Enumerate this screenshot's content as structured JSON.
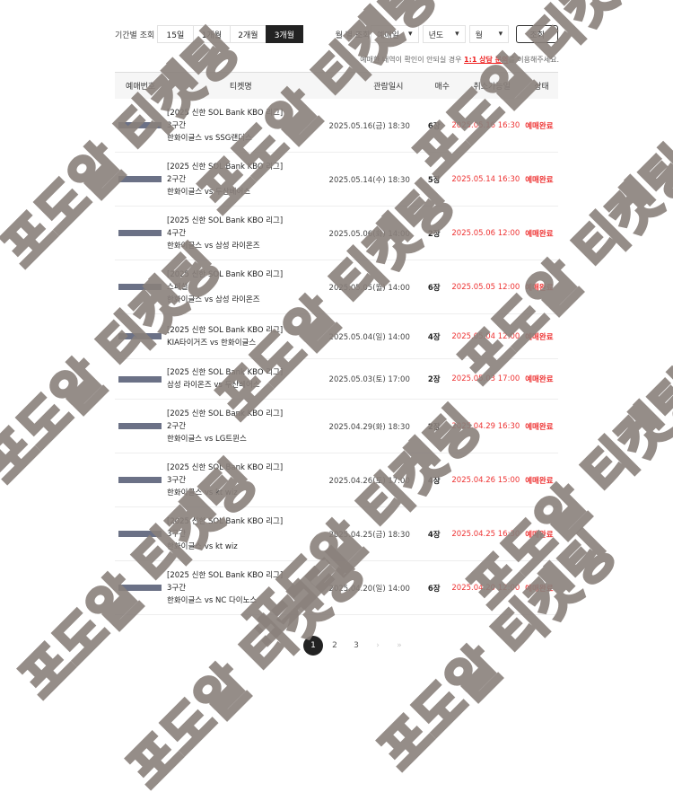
{
  "filter": {
    "period_label": "기간별 조회",
    "periods": [
      "15일",
      "1개월",
      "2개월",
      "3개월"
    ],
    "active_period": "3개월",
    "month_label": "월 별 조회",
    "type_select": "예매일",
    "year_select": "년도",
    "month_select": "월",
    "search_button": "조회"
  },
  "notice": {
    "prefix": "예매한 내역이 확인이 안되실 경우 ",
    "link": "1:1 상담 문의",
    "suffix": "를 이용해주세요."
  },
  "table": {
    "headers": [
      "예매번호",
      "티켓명",
      "관람일시",
      "매수",
      "취소가능일",
      "상태"
    ],
    "rows": [
      {
        "league": "[2025 신한 SOL Bank KBO 리그]",
        "section": "3구간",
        "match": "한화이글스 vs SSG랜더스",
        "date": "2025.05.16(금) 18:30",
        "count": "6장",
        "cancel": "2025.05.16 16:30",
        "status": "예매완료"
      },
      {
        "league": "[2025 신한 SOL Bank KBO 리그]",
        "section": "2구간",
        "match": "한화이글스 vs 두산베어스",
        "date": "2025.05.14(수) 18:30",
        "count": "5장",
        "cancel": "2025.05.14 16:30",
        "status": "예매완료"
      },
      {
        "league": "[2025 신한 SOL Bank KBO 리그]",
        "section": "4구간",
        "match": "한화이글스 vs 삼성 라이온즈",
        "date": "2025.05.06(화) 14:00",
        "count": "2장",
        "cancel": "2025.05.06 12:00",
        "status": "예매완료"
      },
      {
        "league": "[2025 신한 SOL Bank KBO 리그]",
        "section": "스페셜",
        "match": "한화이글스 vs 삼성 라이온즈",
        "date": "2025.05.05(월) 14:00",
        "count": "6장",
        "cancel": "2025.05.05 12:00",
        "status": "예매완료"
      },
      {
        "league": "[2025 신한 SOL Bank KBO 리그]",
        "section": "",
        "match": "KIA타이거즈 vs 한화이글스",
        "date": "2025.05.04(일) 14:00",
        "count": "4장",
        "cancel": "2025.05.04 12:00",
        "status": "예매완료"
      },
      {
        "league": "[2025 신한 SOL Bank KBO 리그]",
        "section": "",
        "match": "삼성 라이온즈 vs 두산베어스",
        "date": "2025.05.03(토) 17:00",
        "count": "2장",
        "cancel": "2025.05.03 17:00",
        "status": "예매완료"
      },
      {
        "league": "[2025 신한 SOL Bank KBO 리그]",
        "section": "2구간",
        "match": "한화이글스 vs LG트윈스",
        "date": "2025.04.29(화) 18:30",
        "count": "2장",
        "cancel": "2025.04.29 16:30",
        "status": "예매완료"
      },
      {
        "league": "[2025 신한 SOL Bank KBO 리그]",
        "section": "3구간",
        "match": "한화이글스 vs kt wiz",
        "date": "2025.04.26(토) 17:00",
        "count": "4장",
        "cancel": "2025.04.26 15:00",
        "status": "예매완료"
      },
      {
        "league": "[2025 신한 SOL Bank KBO 리그]",
        "section": "3구간",
        "match": "한화이글스 vs kt wiz",
        "date": "2025.04.25(금) 18:30",
        "count": "4장",
        "cancel": "2025.04.25 16:30",
        "status": "예매완료"
      },
      {
        "league": "[2025 신한 SOL Bank KBO 리그]",
        "section": "3구간",
        "match": "한화이글스 vs NC 다이노스",
        "date": "2025.04.20(일) 14:00",
        "count": "6장",
        "cancel": "2025.04.20 12:00",
        "status": "예매완료"
      }
    ]
  },
  "pagination": {
    "pages": [
      "1",
      "2",
      "3"
    ],
    "current": "1"
  },
  "watermark": "포도알 티켓팅",
  "colors": {
    "accent": "#e33333",
    "active": "#222222"
  }
}
